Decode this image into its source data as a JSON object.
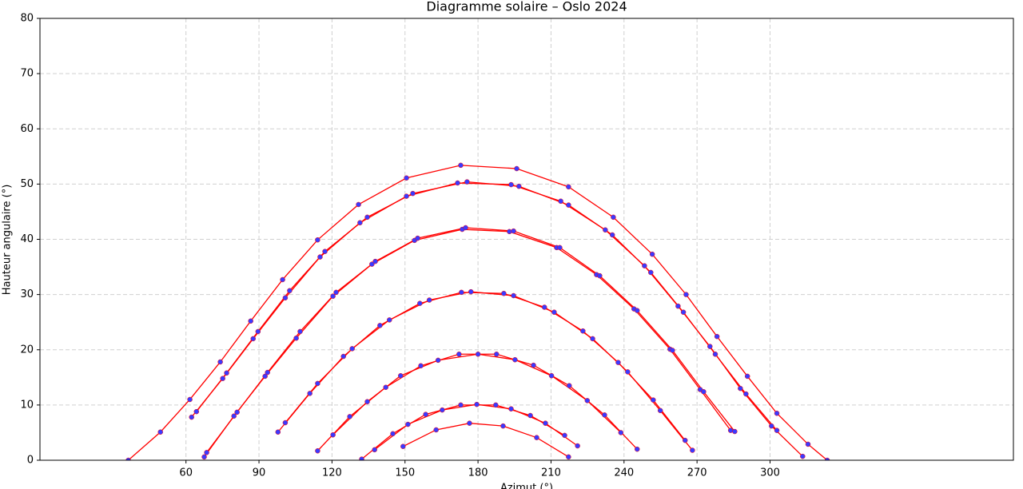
{
  "chart_data": {
    "type": "line",
    "title": "Diagramme solaire – Oslo 2024",
    "xlabel": "Azimut (°)",
    "ylabel": "Hauteur angulaire (°)",
    "xlim": [
      0,
      400
    ],
    "ylim": [
      0,
      80
    ],
    "xticks": [
      60,
      90,
      120,
      150,
      180,
      210,
      240,
      270,
      300
    ],
    "yticks": [
      0,
      10,
      20,
      30,
      40,
      50,
      60,
      70,
      80
    ],
    "grid": true,
    "marker_color": "#3a3aff",
    "series": [
      {
        "color": "#ff0000",
        "x": [
          36.3,
          49.5,
          61.6,
          74.1,
          86.6,
          99.7,
          114.1,
          130.9,
          150.6,
          172.9,
          195.9,
          217.2,
          235.6,
          251.6,
          265.5,
          278.2,
          290.7,
          302.8,
          315.6,
          323.5
        ],
        "values": [
          0,
          5.1,
          11.0,
          17.8,
          25.2,
          32.7,
          39.9,
          46.3,
          51.1,
          53.4,
          52.8,
          49.5,
          44.0,
          37.3,
          30.0,
          22.4,
          15.2,
          8.5,
          2.9,
          0
        ]
      },
      {
        "color": "#ff0000",
        "x": [
          62.3,
          75.1,
          87.6,
          100.8,
          115.1,
          131.5,
          150.6,
          171.6,
          193.6,
          214.0,
          232.3,
          248.4,
          262.2,
          275.3,
          287.8,
          300.6,
          313.4
        ],
        "values": [
          7.8,
          14.8,
          22.0,
          29.4,
          36.8,
          43.0,
          47.8,
          50.2,
          49.9,
          46.9,
          41.7,
          35.2,
          27.9,
          20.6,
          13.0,
          6.2,
          0.7
        ]
      },
      {
        "color": "#ff0000",
        "x": [
          64.3,
          76.7,
          89.6,
          102.6,
          117.1,
          134.5,
          153.2,
          175.5,
          196.8,
          217.2,
          235.2,
          251.0,
          264.4,
          277.5,
          290.1,
          302.8
        ],
        "values": [
          8.8,
          15.8,
          23.3,
          30.7,
          37.8,
          44.0,
          48.3,
          50.4,
          49.6,
          46.2,
          40.8,
          34.0,
          26.8,
          19.2,
          12.0,
          5.4
        ]
      },
      {
        "color": "#ff0000",
        "x": [
          67.5,
          79.7,
          92.5,
          105.3,
          120.4,
          136.4,
          153.9,
          173.5,
          192.9,
          212.3,
          228.7,
          244.1,
          258.9,
          271.3,
          283.8
        ],
        "values": [
          0.6,
          8.0,
          15.2,
          22.1,
          29.7,
          35.5,
          39.8,
          41.8,
          41.4,
          38.5,
          33.6,
          27.4,
          20.1,
          12.8,
          5.4
        ]
      },
      {
        "color": "#ff0000",
        "x": [
          68.5,
          81.0,
          93.5,
          106.9,
          121.7,
          137.8,
          155.2,
          174.9,
          194.6,
          213.6,
          230.0,
          245.4,
          259.9,
          272.7,
          285.5
        ],
        "values": [
          1.4,
          8.7,
          15.9,
          23.3,
          30.4,
          36.0,
          40.2,
          42.1,
          41.5,
          38.5,
          33.4,
          27.1,
          19.9,
          12.4,
          5.2
        ]
      },
      {
        "color": "#ff0000",
        "x": [
          97.8,
          110.9,
          124.7,
          139.7,
          156.1,
          173.2,
          190.6,
          207.3,
          223.1,
          237.6,
          252.0,
          265.1
        ],
        "values": [
          5.1,
          12.1,
          18.8,
          24.4,
          28.4,
          30.4,
          30.2,
          27.7,
          23.4,
          17.7,
          10.9,
          3.6
        ]
      },
      {
        "color": "#ff0000",
        "x": [
          100.8,
          114.1,
          128.3,
          143.6,
          160.0,
          177.1,
          194.6,
          211.3,
          227.1,
          241.5,
          254.9,
          268.1
        ],
        "values": [
          6.8,
          13.9,
          20.2,
          25.4,
          29.0,
          30.5,
          29.8,
          26.8,
          22.0,
          16.0,
          9.0,
          1.8
        ]
      },
      {
        "color": "#ff0000",
        "x": [
          114.1,
          127.3,
          142.1,
          156.5,
          172.2,
          187.6,
          202.8,
          217.5,
          232.0,
          245.4
        ],
        "values": [
          1.7,
          7.9,
          13.2,
          17.1,
          19.2,
          19.2,
          17.2,
          13.5,
          8.2,
          2.0
        ]
      },
      {
        "color": "#ff0000",
        "x": [
          120.4,
          134.5,
          148.2,
          163.6,
          180.0,
          195.2,
          210.2,
          224.9,
          238.7
        ],
        "values": [
          4.6,
          10.6,
          15.3,
          18.1,
          19.2,
          18.2,
          15.3,
          10.8,
          5.0
        ]
      },
      {
        "color": "#ff0000",
        "x": [
          132.2,
          145.0,
          158.5,
          172.9,
          187.3,
          201.5,
          215.6
        ],
        "values": [
          0.2,
          4.8,
          8.3,
          10.0,
          10.0,
          8.1,
          4.5
        ]
      },
      {
        "color": "#ff0000",
        "x": [
          137.5,
          151.2,
          165.3,
          179.5,
          193.6,
          207.7,
          220.9
        ],
        "values": [
          1.9,
          6.5,
          9.1,
          10.1,
          9.3,
          6.7,
          2.6
        ]
      },
      {
        "color": "#ff0000",
        "x": [
          149.2,
          162.8,
          176.5,
          190.3,
          204.1,
          217.2
        ],
        "values": [
          2.5,
          5.5,
          6.7,
          6.2,
          4.1,
          0.6
        ]
      }
    ]
  }
}
